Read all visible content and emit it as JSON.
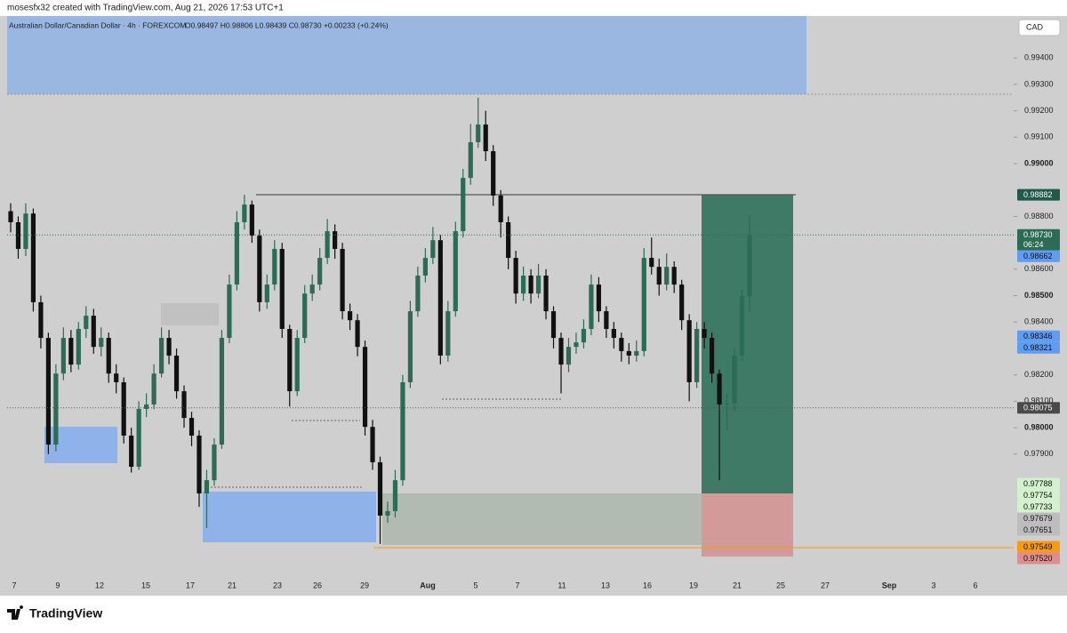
{
  "header": "mosesfx32 created with TradingView.com, Aug 21, 2026 17:53 UTC+1",
  "footer": "TradingView",
  "chart_data": {
    "type": "candlestick",
    "title": "Australian Dollar/Canadian Dollar · 4h · FOREXCOM",
    "ohlc_text": "O0.98497 H0.98806 L0.98439 C0.98730 +0.00233 (+0.24%)",
    "currency": "CAD",
    "countdown": "06:24",
    "up_color": "#2c6b55",
    "down_color": "#111111",
    "open": [
      0.9882,
      0.98778,
      0.98677,
      0.98811,
      0.98475,
      0.9834,
      0.97936,
      0.98205,
      0.9834,
      0.98239,
      0.98374,
      0.98424,
      0.98306,
      0.9834,
      0.98205,
      0.98172,
      0.9797,
      0.97852,
      0.98071,
      0.98088,
      0.98205,
      0.9834,
      0.98273,
      0.98138,
      0.98037,
      0.9797,
      0.97751,
      0.97801,
      0.97936,
      0.9834,
      0.98542,
      0.98778,
      0.98845,
      0.98727,
      0.98475,
      0.98542,
      0.98677,
      0.98374,
      0.98138,
      0.9834,
      0.98508,
      0.98542,
      0.98643,
      0.98744,
      0.98677,
      0.98441,
      0.98407,
      0.98306,
      0.98003,
      0.97869,
      0.97667,
      0.97684,
      0.97801,
      0.98172,
      0.98441,
      0.98576,
      0.98643,
      0.9871,
      0.98273,
      0.98441,
      0.98744,
      0.98946,
      0.99081,
      0.99148,
      0.99047,
      0.98879,
      0.98778,
      0.98643,
      0.98508,
      0.98576,
      0.98508,
      0.98576,
      0.98441,
      0.9834,
      0.98239,
      0.98306,
      0.98323,
      0.98374,
      0.98542,
      0.98441,
      0.98374,
      0.9834,
      0.9829,
      0.98273,
      0.9829,
      0.98643,
      0.98609,
      0.98542,
      0.98609,
      0.98542,
      0.98407,
      0.98172,
      0.98374,
      0.9834,
      0.98205,
      0.98088,
      0.98092,
      0.98273,
      0.98497
    ],
    "high": [
      0.9885,
      0.988,
      0.9885,
      0.9883,
      0.985,
      0.9836,
      0.9824,
      0.9838,
      0.9837,
      0.984,
      0.9846,
      0.9845,
      0.9838,
      0.9836,
      0.9824,
      0.9819,
      0.98,
      0.981,
      0.9813,
      0.9824,
      0.9838,
      0.9837,
      0.983,
      0.9816,
      0.9806,
      0.9799,
      0.9784,
      0.9796,
      0.9837,
      0.9858,
      0.9882,
      0.98882,
      0.9886,
      0.9875,
      0.9858,
      0.9871,
      0.987,
      0.9839,
      0.9837,
      0.9854,
      0.9858,
      0.9868,
      0.9879,
      0.9877,
      0.987,
      0.9847,
      0.9843,
      0.9833,
      0.9803,
      0.9789,
      0.9772,
      0.9784,
      0.982,
      0.9848,
      0.9861,
      0.9868,
      0.9876,
      0.9873,
      0.9848,
      0.9878,
      0.9898,
      0.9915,
      0.9925,
      0.992,
      0.9907,
      0.989,
      0.988,
      0.9867,
      0.9861,
      0.986,
      0.9862,
      0.986,
      0.9846,
      0.9836,
      0.9834,
      0.9836,
      0.9841,
      0.9858,
      0.9857,
      0.9846,
      0.984,
      0.9836,
      0.9832,
      0.9833,
      0.9868,
      0.9872,
      0.9864,
      0.9866,
      0.9863,
      0.9856,
      0.9843,
      0.984,
      0.984,
      0.9836,
      0.9822,
      0.9813,
      0.983,
      0.9852,
      0.98806
    ],
    "low": [
      0.9874,
      0.9864,
      0.9865,
      0.9844,
      0.983,
      0.979,
      0.9791,
      0.9818,
      0.9821,
      0.9822,
      0.9834,
      0.9828,
      0.9827,
      0.9817,
      0.9813,
      0.9794,
      0.9783,
      0.9784,
      0.9804,
      0.9807,
      0.9819,
      0.9824,
      0.9811,
      0.98,
      0.9793,
      0.977,
      0.9762,
      0.9778,
      0.9792,
      0.9832,
      0.9852,
      0.9875,
      0.987,
      0.9844,
      0.9845,
      0.9852,
      0.9834,
      0.9808,
      0.9812,
      0.9832,
      0.9848,
      0.9852,
      0.9862,
      0.9864,
      0.9841,
      0.9837,
      0.9827,
      0.9797,
      0.9784,
      0.9756,
      0.9764,
      0.9766,
      0.9778,
      0.9815,
      0.9842,
      0.9855,
      0.9862,
      0.9824,
      0.9825,
      0.9842,
      0.9872,
      0.9892,
      0.9906,
      0.9901,
      0.9884,
      0.9872,
      0.986,
      0.9847,
      0.9848,
      0.9847,
      0.9849,
      0.9841,
      0.983,
      0.9813,
      0.9821,
      0.9828,
      0.983,
      0.9835,
      0.984,
      0.9834,
      0.983,
      0.9825,
      0.9824,
      0.9825,
      0.9827,
      0.9858,
      0.985,
      0.9852,
      0.9851,
      0.9837,
      0.981,
      0.9815,
      0.983,
      0.9817,
      0.97801,
      0.9799,
      0.9806,
      0.9825,
      0.98439
    ],
    "close": [
      0.98778,
      0.98677,
      0.98811,
      0.98475,
      0.9834,
      0.97936,
      0.98205,
      0.9834,
      0.98239,
      0.98374,
      0.98424,
      0.98306,
      0.9834,
      0.98205,
      0.98172,
      0.9797,
      0.97852,
      0.98071,
      0.98088,
      0.98205,
      0.9834,
      0.98273,
      0.98138,
      0.98037,
      0.9797,
      0.97751,
      0.97801,
      0.97936,
      0.9834,
      0.98542,
      0.98778,
      0.98845,
      0.98727,
      0.98475,
      0.98542,
      0.98677,
      0.98374,
      0.98138,
      0.9834,
      0.98508,
      0.98542,
      0.98643,
      0.98744,
      0.98677,
      0.98441,
      0.98407,
      0.98306,
      0.98003,
      0.97869,
      0.97667,
      0.97684,
      0.97801,
      0.98172,
      0.98441,
      0.98576,
      0.98643,
      0.9871,
      0.98273,
      0.98441,
      0.98744,
      0.98946,
      0.99081,
      0.99148,
      0.99047,
      0.98879,
      0.98778,
      0.98643,
      0.98508,
      0.98576,
      0.98508,
      0.98576,
      0.98441,
      0.9834,
      0.98239,
      0.98306,
      0.98323,
      0.98374,
      0.98542,
      0.98441,
      0.98374,
      0.9834,
      0.9829,
      0.98273,
      0.9829,
      0.98643,
      0.98609,
      0.98542,
      0.98609,
      0.98542,
      0.98407,
      0.98172,
      0.98374,
      0.9834,
      0.98205,
      0.98088,
      0.98092,
      0.98273,
      0.98497,
      0.9873
    ],
    "ylim": [
      0.97448,
      0.99559
    ],
    "yticks": [
      {
        "value": 0.994,
        "label": "0.99400"
      },
      {
        "value": 0.993,
        "label": "0.99300"
      },
      {
        "value": 0.992,
        "label": "0.99200"
      },
      {
        "value": 0.991,
        "label": "0.99100"
      },
      {
        "value": 0.99,
        "label": "0.99000"
      },
      {
        "value": 0.988,
        "label": "0.98800"
      },
      {
        "value": 0.986,
        "label": "0.98600"
      },
      {
        "value": 0.985,
        "label": "0.98500"
      },
      {
        "value": 0.984,
        "label": "0.98400"
      },
      {
        "value": 0.982,
        "label": "0.98200"
      },
      {
        "value": 0.981,
        "label": "0.98100"
      },
      {
        "value": 0.98,
        "label": "0.98000"
      },
      {
        "value": 0.979,
        "label": "0.97900"
      }
    ],
    "x_labels": [
      "7",
      "9",
      "12",
      "15",
      "17",
      "21",
      "23",
      "26",
      "29",
      "Aug",
      "5",
      "7",
      "11",
      "13",
      "16",
      "19",
      "21",
      "25",
      "27",
      "Sep",
      "3",
      "6"
    ],
    "price_labels": [
      0.98882,
      {
        "value": 0.9873,
        "label": "0.98730"
      },
      0.98662,
      0.98346,
      0.98321,
      0.98075,
      0.97788,
      0.97754,
      0.97733,
      0.97679,
      0.97651,
      0.97549,
      {
        "value": 0.9752,
        "label": "0.97520"
      }
    ],
    "price_label_colors": [
      "#1f5a4b",
      "#2c6b55",
      "#5f9cf2",
      "#5f9cf2",
      "#5f9cf2",
      "#4a4a4a",
      "#d3f1cc",
      "#d3f1cc",
      "#d3f1cc",
      "#bdbdbd",
      "#bdbdbd",
      "#f59b16",
      "#de8e8e"
    ]
  }
}
